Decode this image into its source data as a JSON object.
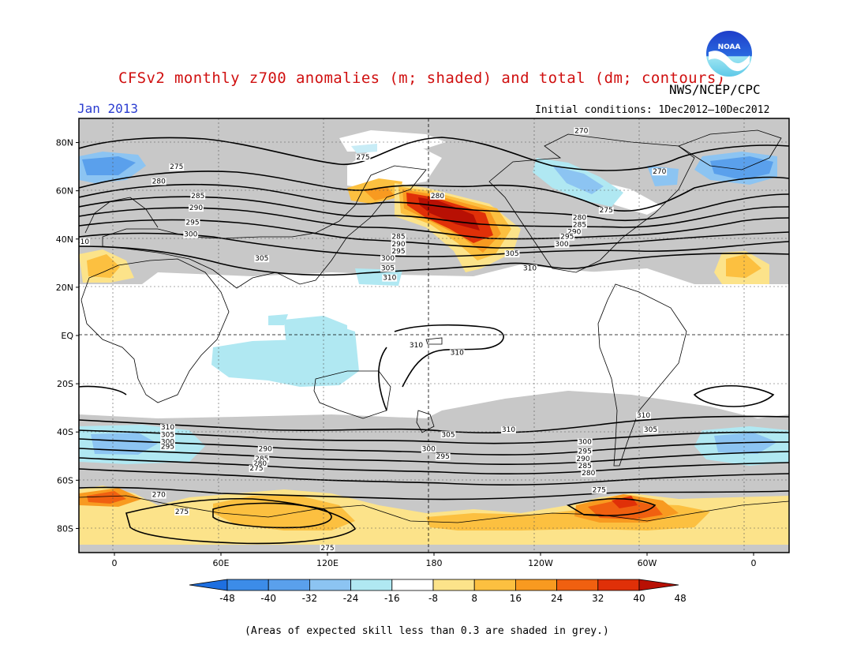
{
  "header": {
    "title": "CFSv2 monthly z700 anomalies (m; shaded) and total (dm; contours)",
    "agency": "NWS/NCEP/CPC",
    "month": "Jan 2013",
    "initial_conditions": "Initial conditions: 1Dec2012—10Dec2012"
  },
  "logo": {
    "text": "NOAA",
    "color": "#1e3cc8"
  },
  "axes": {
    "lat_labels": [
      "80N",
      "60N",
      "40N",
      "20N",
      "EQ",
      "20S",
      "40S",
      "60S",
      "80S"
    ],
    "lat_values": [
      80,
      60,
      40,
      20,
      0,
      -20,
      -40,
      -60,
      -80
    ],
    "lon_labels": [
      "0",
      "60E",
      "120E",
      "180",
      "120W",
      "60W",
      "0"
    ],
    "lon_values": [
      0,
      60,
      120,
      180,
      240,
      300,
      360
    ]
  },
  "contour_labels": [
    {
      "text": "275",
      "lon": 140,
      "lat": 74
    },
    {
      "text": "270",
      "lon": 263,
      "lat": 85
    },
    {
      "text": "275",
      "lon": 35,
      "lat": 70
    },
    {
      "text": "280",
      "lon": 25,
      "lat": 64
    },
    {
      "text": "285",
      "lon": 47,
      "lat": 58
    },
    {
      "text": "290",
      "lon": 46,
      "lat": 53
    },
    {
      "text": "295",
      "lon": 44,
      "lat": 47
    },
    {
      "text": "300",
      "lon": 43,
      "lat": 42
    },
    {
      "text": "310",
      "lon": -18,
      "lat": 39
    },
    {
      "text": "305",
      "lon": 83,
      "lat": 32
    },
    {
      "text": "310",
      "lon": 155,
      "lat": 24
    },
    {
      "text": "285",
      "lon": 160,
      "lat": 41
    },
    {
      "text": "290",
      "lon": 160,
      "lat": 38
    },
    {
      "text": "295",
      "lon": 160,
      "lat": 35
    },
    {
      "text": "300",
      "lon": 154,
      "lat": 32
    },
    {
      "text": "305",
      "lon": 154,
      "lat": 28
    },
    {
      "text": "280",
      "lon": 182,
      "lat": 58
    },
    {
      "text": "270",
      "lon": 307,
      "lat": 68
    },
    {
      "text": "275",
      "lon": 277,
      "lat": 52
    },
    {
      "text": "280",
      "lon": 262,
      "lat": 49
    },
    {
      "text": "285",
      "lon": 262,
      "lat": 46
    },
    {
      "text": "290",
      "lon": 259,
      "lat": 43
    },
    {
      "text": "295",
      "lon": 255,
      "lat": 41
    },
    {
      "text": "300",
      "lon": 252,
      "lat": 38
    },
    {
      "text": "305",
      "lon": 224,
      "lat": 34
    },
    {
      "text": "310",
      "lon": 234,
      "lat": 28
    },
    {
      "text": "310",
      "lon": 170,
      "lat": -4
    },
    {
      "text": "310",
      "lon": 193,
      "lat": -7
    },
    {
      "text": "310",
      "lon": 30,
      "lat": -38
    },
    {
      "text": "305",
      "lon": 30,
      "lat": -41
    },
    {
      "text": "300",
      "lon": 30,
      "lat": -44
    },
    {
      "text": "295",
      "lon": 30,
      "lat": -46
    },
    {
      "text": "290",
      "lon": 85,
      "lat": -47
    },
    {
      "text": "285",
      "lon": 83,
      "lat": -51
    },
    {
      "text": "280",
      "lon": 82,
      "lat": -53
    },
    {
      "text": "275",
      "lon": 80,
      "lat": -55
    },
    {
      "text": "305",
      "lon": 188,
      "lat": -41
    },
    {
      "text": "300",
      "lon": 177,
      "lat": -47
    },
    {
      "text": "295",
      "lon": 185,
      "lat": -50
    },
    {
      "text": "310",
      "lon": 222,
      "lat": -39
    },
    {
      "text": "310",
      "lon": 298,
      "lat": -33
    },
    {
      "text": "305",
      "lon": 302,
      "lat": -39
    },
    {
      "text": "300",
      "lon": 265,
      "lat": -44
    },
    {
      "text": "295",
      "lon": 265,
      "lat": -48
    },
    {
      "text": "290",
      "lon": 264,
      "lat": -51
    },
    {
      "text": "285",
      "lon": 265,
      "lat": -54
    },
    {
      "text": "280",
      "lon": 267,
      "lat": -57
    },
    {
      "text": "275",
      "lon": 273,
      "lat": -64
    },
    {
      "text": "270",
      "lon": 25,
      "lat": -66
    },
    {
      "text": "275",
      "lon": 38,
      "lat": -73
    },
    {
      "text": "275",
      "lon": 120,
      "lat": -88
    }
  ],
  "colorbar": {
    "labels": [
      "-48",
      "-40",
      "-32",
      "-24",
      "-16",
      "-8",
      "8",
      "16",
      "24",
      "32",
      "40",
      "48"
    ],
    "colors": [
      "#1e6fe0",
      "#3c8ce8",
      "#5aa0ec",
      "#8cc4f2",
      "#b0e8f2",
      "#ffffff",
      "#fce38a",
      "#fcc040",
      "#f89a20",
      "#f06010",
      "#e03008",
      "#b81004"
    ]
  },
  "footnote": "(Areas of expected skill less than 0.3 are shaded in grey.)",
  "colors": {
    "skill_grey": "#c8c8c8",
    "frame": "#000000",
    "title_red": "#d01010",
    "month_blue": "#2a3cd0"
  }
}
